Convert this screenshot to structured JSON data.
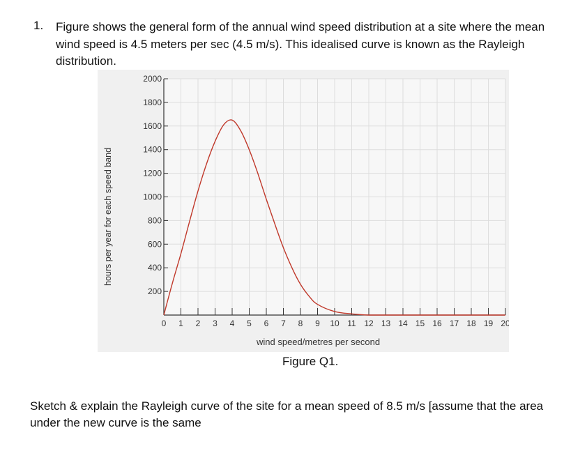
{
  "question": {
    "number": "1.",
    "text": "Figure shows the general form of the annual wind speed distribution at a site where the mean wind speed is 4.5 meters per sec (4.5 m/s). This idealised curve is known as the Rayleigh distribution."
  },
  "chart_data": {
    "type": "line",
    "xlabel": "wind speed/metres per second",
    "ylabel": "hours per year for each speed band",
    "x_ticks": [
      "0",
      "1",
      "2",
      "3",
      "4",
      "5",
      "6",
      "7",
      "8",
      "9",
      "10",
      "11",
      "12",
      "13",
      "14",
      "15",
      "16",
      "17",
      "18",
      "19",
      "20"
    ],
    "y_ticks": [
      "200",
      "400",
      "600",
      "800",
      "1000",
      "1200",
      "1400",
      "1600",
      "1800",
      "2000"
    ],
    "xlim": [
      0,
      20
    ],
    "ylim": [
      0,
      2000
    ],
    "grid": true,
    "line_color": "#c0392b",
    "series": [
      {
        "x": [
          0,
          0.5,
          1,
          1.5,
          2,
          2.5,
          3,
          3.5,
          4,
          4.5,
          5,
          5.5,
          6,
          6.5,
          7,
          7.5,
          8,
          8.5,
          9,
          10,
          11,
          12,
          13,
          14,
          15,
          16,
          17,
          18,
          19,
          20
        ],
        "values": [
          0,
          270,
          520,
          790,
          1050,
          1280,
          1470,
          1610,
          1650,
          1560,
          1400,
          1200,
          980,
          770,
          570,
          400,
          260,
          160,
          90,
          30,
          10,
          0,
          0,
          0,
          0,
          0,
          0,
          0,
          0,
          0
        ]
      }
    ]
  },
  "figure": {
    "caption": "Figure Q1."
  },
  "subquestion": {
    "text": "Sketch & explain the Rayleigh curve of the site for a mean speed of 8.5 m/s [assume that the area under the new curve is the same"
  }
}
